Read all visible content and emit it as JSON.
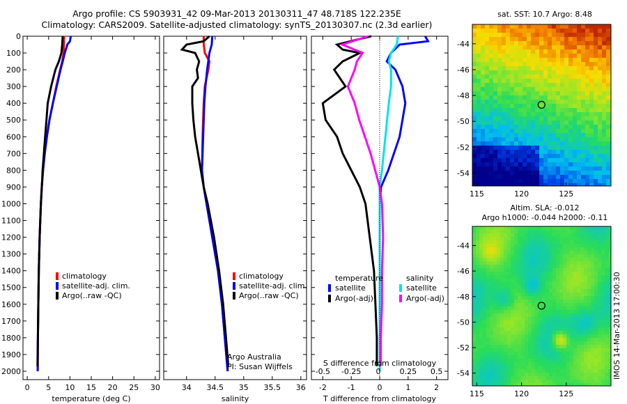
{
  "header": {
    "line1": "Argo profile: CS 5903931_42 09-Mar-2013 20130311_47 48.718S 122.235E",
    "line2": "Climatology: CARS2009. Satellite-adjusted climatology: synTS_20130307.nc (2.3d earlier)"
  },
  "colors": {
    "climatology": "#ff0000",
    "satellite": "#0000ff",
    "argo": "#000000",
    "sal_satellite": "#00e5e5",
    "sal_argo": "#ff00ff"
  },
  "depth_axis": {
    "ylim": [
      0,
      2050
    ],
    "ticks": [
      0,
      100,
      200,
      300,
      400,
      500,
      600,
      700,
      800,
      900,
      1000,
      1100,
      1200,
      1300,
      1400,
      1500,
      1600,
      1700,
      1800,
      1900,
      2000
    ]
  },
  "chart_data": [
    {
      "type": "line",
      "xlabel": "temperature (deg C)",
      "xlim": [
        -1,
        31
      ],
      "xticks": [
        0,
        5,
        10,
        15,
        20,
        25,
        30
      ],
      "legend": [
        "climatology",
        "satellite-adj. clim.",
        "Argo(..raw -QC)"
      ],
      "series": [
        {
          "name": "climatology",
          "depth": [
            0,
            50,
            100,
            150,
            200,
            300,
            400,
            500,
            600,
            700,
            800,
            900,
            1000,
            1200,
            1400,
            1600,
            1800,
            2000
          ],
          "values": [
            8.6,
            8.6,
            8.5,
            8.2,
            7.7,
            6.8,
            6.0,
            5.2,
            4.6,
            4.1,
            3.7,
            3.4,
            3.2,
            2.9,
            2.7,
            2.6,
            2.5,
            2.45
          ]
        },
        {
          "name": "satellite-adj. clim.",
          "depth": [
            0,
            30,
            50,
            100,
            150,
            200,
            300,
            400,
            500,
            600,
            700,
            800,
            900,
            1000,
            1200,
            1400,
            1600,
            1800,
            2000
          ],
          "values": [
            10.2,
            10.0,
            9.4,
            8.8,
            8.3,
            7.8,
            6.9,
            6.0,
            5.2,
            4.6,
            4.1,
            3.7,
            3.4,
            3.2,
            2.9,
            2.7,
            2.6,
            2.5,
            2.45
          ]
        },
        {
          "name": "Argo(..raw -QC)",
          "depth": [
            0,
            50,
            100,
            150,
            200,
            300,
            400,
            500,
            600,
            700,
            800,
            900,
            1000,
            1200,
            1400,
            1600,
            1800,
            1970
          ],
          "values": [
            8.3,
            8.2,
            8.0,
            7.4,
            6.6,
            5.6,
            4.8,
            4.5,
            4.2,
            3.9,
            3.6,
            3.4,
            3.2,
            2.9,
            2.7,
            2.6,
            2.5,
            2.4
          ]
        }
      ]
    },
    {
      "type": "line",
      "xlabel": "salinity",
      "xlim": [
        33.6,
        36.1
      ],
      "xticks": [
        34,
        34.5,
        35,
        35.5,
        36
      ],
      "legend": [
        "climatology",
        "satellite-adj. clim.",
        "Argo(..raw -QC)"
      ],
      "annotations": [
        "Argo Australia",
        "PI: Susan Wijffels"
      ],
      "series": [
        {
          "name": "climatology",
          "depth": [
            0,
            50,
            100,
            150,
            200,
            300,
            400,
            600,
            800,
            900,
            1000,
            1200,
            1400,
            1600,
            1800,
            2000
          ],
          "values": [
            34.3,
            34.3,
            34.32,
            34.4,
            34.38,
            34.32,
            34.3,
            34.28,
            34.27,
            34.3,
            34.35,
            34.45,
            34.55,
            34.62,
            34.67,
            34.72
          ]
        },
        {
          "name": "satellite-adj. clim.",
          "depth": [
            0,
            50,
            100,
            150,
            200,
            300,
            400,
            600,
            800,
            900,
            1000,
            1200,
            1400,
            1600,
            1800,
            2000
          ],
          "values": [
            34.45,
            34.44,
            34.4,
            34.38,
            34.36,
            34.33,
            34.31,
            34.29,
            34.27,
            34.3,
            34.35,
            34.45,
            34.55,
            34.62,
            34.67,
            34.72
          ]
        },
        {
          "name": "Argo(..raw -QC)",
          "depth": [
            0,
            30,
            50,
            80,
            100,
            150,
            200,
            250,
            300,
            400,
            500,
            600,
            700,
            800,
            900,
            1000,
            1200,
            1400,
            1600,
            1800,
            1970
          ],
          "values": [
            34.4,
            34.3,
            34.0,
            33.92,
            34.15,
            34.22,
            34.18,
            34.2,
            34.1,
            34.1,
            34.12,
            34.15,
            34.2,
            34.25,
            34.3,
            34.37,
            34.48,
            34.57,
            34.64,
            34.69,
            34.73
          ]
        }
      ]
    },
    {
      "type": "line",
      "xlabel": "T difference from climatology",
      "xlabel2": "S difference from climatology",
      "xlim": [
        -2.4,
        2.4
      ],
      "xticks": [
        -2,
        -1,
        0,
        1,
        2
      ],
      "x2ticks": [
        "-0.5",
        "-0.25",
        "0",
        "0.25",
        "0.5"
      ],
      "legend_temperature": {
        "heading": "temperature",
        "items": [
          "satellite",
          "Argo(-adj)"
        ]
      },
      "legend_salinity": {
        "heading": "salinity",
        "items": [
          "satellite",
          "Argo(-adj)"
        ]
      },
      "series": [
        {
          "name": "temperature satellite",
          "depth": [
            0,
            30,
            50,
            100,
            150,
            200,
            300,
            400,
            600,
            800,
            900,
            1000,
            1200,
            1600,
            2000
          ],
          "values": [
            1.6,
            1.7,
            0.7,
            0.4,
            0.25,
            0.55,
            0.8,
            0.9,
            0.7,
            0.3,
            0.05,
            0,
            0,
            0,
            0
          ]
        },
        {
          "name": "temperature Argo(-adj)",
          "depth": [
            0,
            50,
            80,
            100,
            150,
            200,
            300,
            400,
            500,
            600,
            700,
            800,
            900,
            1000,
            1200,
            1400,
            1600,
            1800,
            1970
          ],
          "values": [
            -0.3,
            -1.5,
            -1.3,
            -0.7,
            -1.3,
            -1.6,
            -1.2,
            -2.0,
            -1.9,
            -1.5,
            -1.3,
            -1.0,
            -0.7,
            -0.5,
            -0.35,
            -0.2,
            -0.15,
            -0.1,
            -0.1
          ]
        },
        {
          "name": "salinity satellite",
          "depth": [
            0,
            50,
            100,
            150,
            200,
            300,
            400,
            600,
            800,
            900,
            1000,
            1200,
            1600,
            2000
          ],
          "values": [
            0.16,
            0.15,
            0.1,
            0.08,
            0.1,
            0.1,
            0.08,
            0.05,
            0.02,
            0,
            0,
            0,
            0,
            0
          ]
        },
        {
          "name": "salinity Argo(-adj)",
          "depth": [
            0,
            50,
            100,
            150,
            200,
            300,
            400,
            500,
            600,
            700,
            800,
            900,
            1000,
            1200,
            1400,
            1600,
            1800,
            1970
          ],
          "values": [
            -0.1,
            -0.33,
            -0.15,
            -0.2,
            -0.22,
            -0.28,
            -0.22,
            -0.18,
            -0.13,
            -0.08,
            -0.04,
            0,
            0.02,
            0.03,
            0.02,
            0.02,
            0.01,
            0.01
          ]
        }
      ]
    },
    {
      "type": "heatmap",
      "title": "sat. SST: 10.7 Argo: 8.48",
      "xlim": [
        114.5,
        130
      ],
      "ylim": [
        -55,
        -42.5
      ],
      "xticks": [
        115,
        120,
        125
      ],
      "yticks": [
        -44,
        -46,
        -48,
        -50,
        -52,
        -54
      ],
      "marker": {
        "lon": 122.235,
        "lat": -48.718
      }
    },
    {
      "type": "heatmap",
      "title": "Altim. SLA: -0.012",
      "subtitle": "Argo h1000: -0.044 h2000: -0.11",
      "xlim": [
        114.5,
        130
      ],
      "ylim": [
        -55,
        -42.5
      ],
      "xticks": [
        115,
        120,
        125
      ],
      "yticks": [
        -44,
        -46,
        -48,
        -50,
        -52,
        -54
      ],
      "marker": {
        "lon": 122.235,
        "lat": -48.718
      }
    }
  ],
  "footer": {
    "stamp": "IMOS 14-Mar-2013 17:00:30"
  }
}
